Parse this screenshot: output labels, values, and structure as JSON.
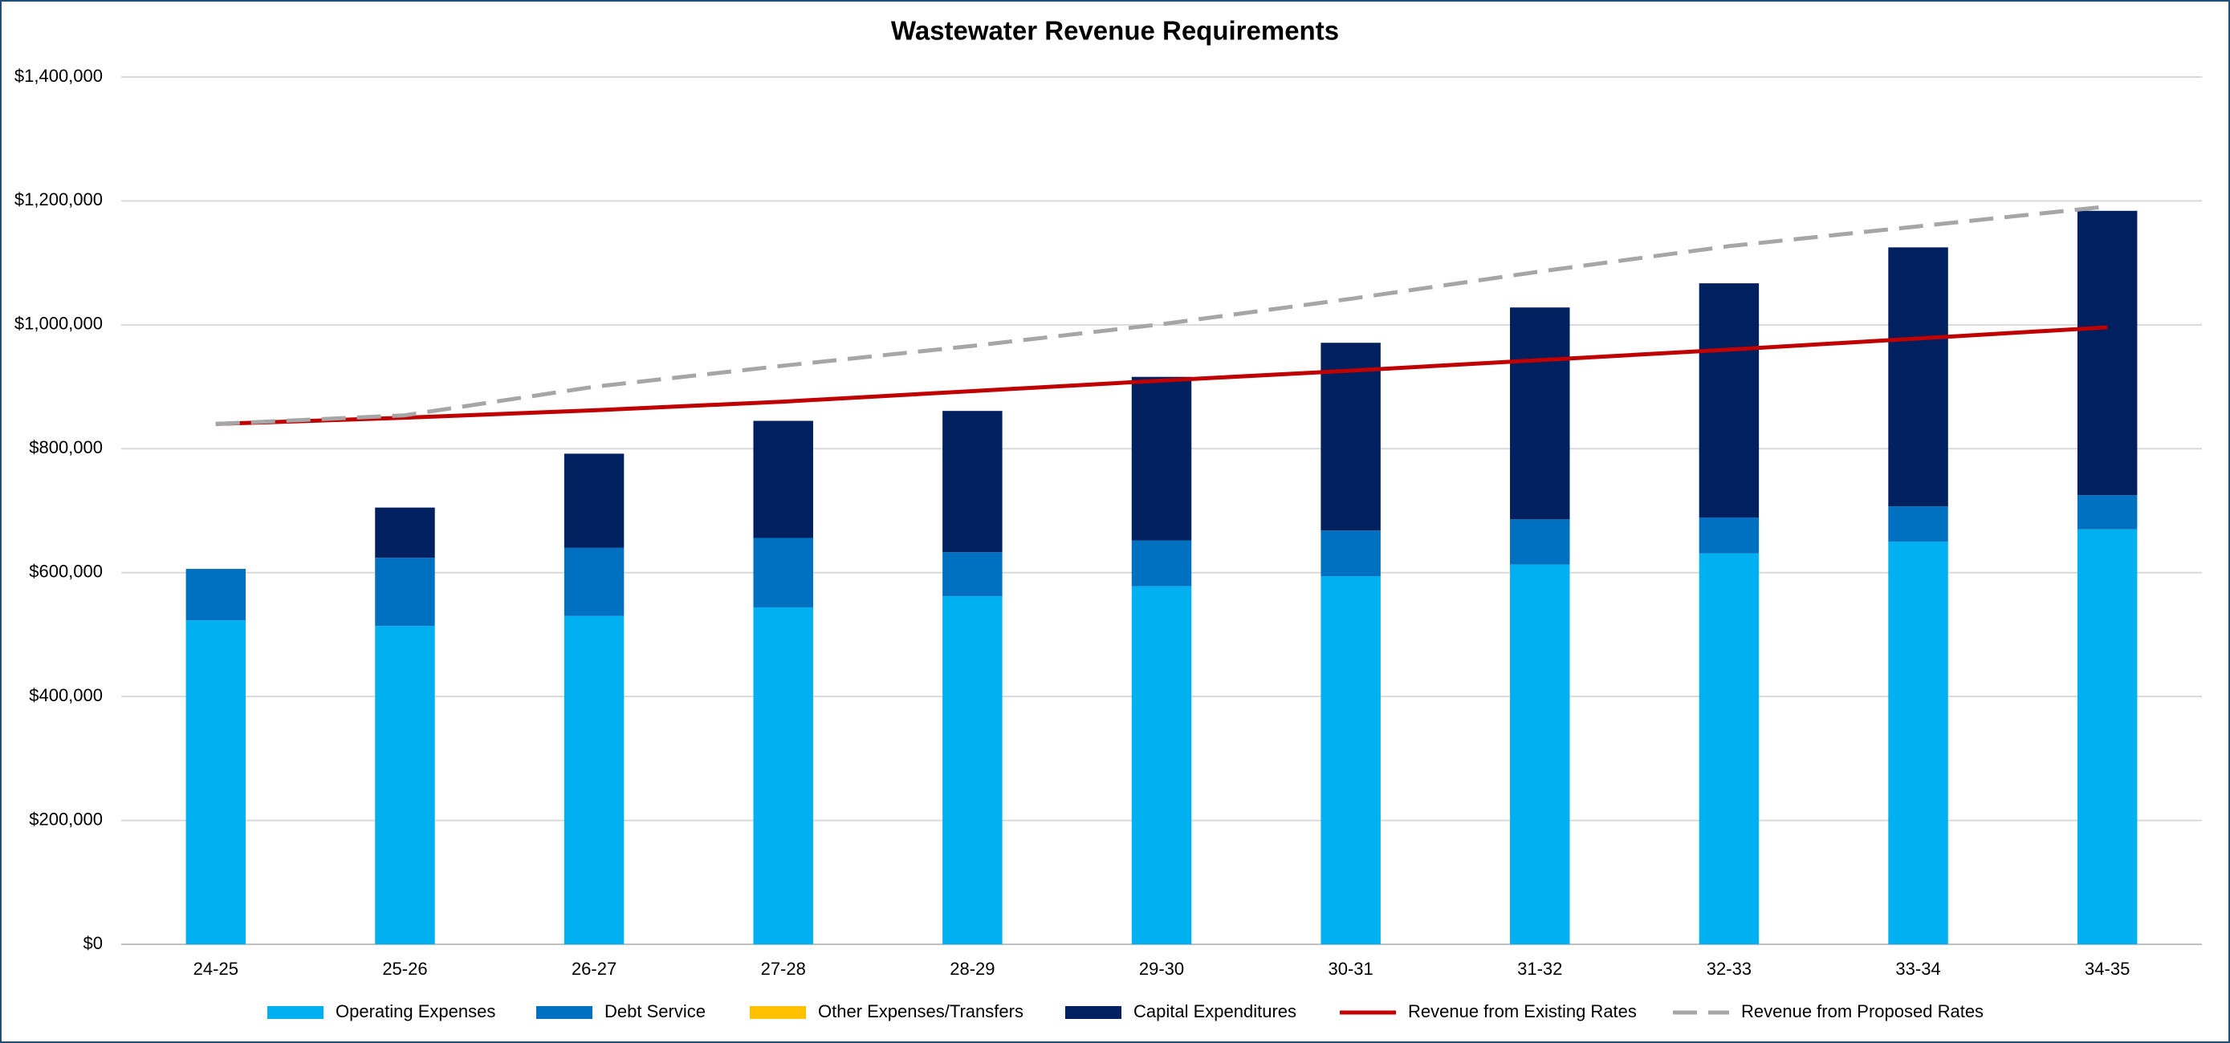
{
  "chart_data": {
    "type": "bar",
    "stacked": true,
    "title": "Wastewater Revenue Requirements",
    "categories": [
      "24-25",
      "25-26",
      "26-27",
      "27-28",
      "28-29",
      "29-30",
      "30-31",
      "31-32",
      "32-33",
      "33-34",
      "34-35"
    ],
    "series": [
      {
        "name": "Operating Expenses",
        "type": "bar",
        "color": "#00b0f0",
        "values": [
          523000,
          514000,
          530000,
          544000,
          562000,
          578000,
          594000,
          613000,
          631000,
          650000,
          670000
        ]
      },
      {
        "name": "Debt Service",
        "type": "bar",
        "color": "#0070c0",
        "values": [
          83000,
          110000,
          110000,
          112000,
          71000,
          74000,
          74000,
          73000,
          58000,
          57000,
          55000
        ]
      },
      {
        "name": "Other Expenses/Transfers",
        "type": "bar",
        "color": "#ffc000",
        "values": [
          0,
          0,
          0,
          0,
          0,
          0,
          0,
          0,
          0,
          0,
          0
        ]
      },
      {
        "name": "Capital Expenditures",
        "type": "bar",
        "color": "#002060",
        "values": [
          0,
          81000,
          152000,
          189000,
          228000,
          264000,
          303000,
          342000,
          378000,
          418000,
          459000
        ]
      },
      {
        "name": "Revenue from Existing Rates",
        "type": "line",
        "color": "#c00000",
        "dashed": false,
        "values": [
          840000,
          850000,
          862000,
          876000,
          893000,
          910000,
          926000,
          943000,
          960000,
          978000,
          996000
        ]
      },
      {
        "name": "Revenue from Proposed Rates",
        "type": "line",
        "color": "#a6a6a6",
        "dashed": true,
        "values": [
          840000,
          854000,
          900000,
          934000,
          966000,
          1001000,
          1042000,
          1086000,
          1127000,
          1159000,
          1191000
        ]
      }
    ],
    "ylim": [
      0,
      1400000
    ],
    "yticks": [
      {
        "value": 0,
        "label": "$0"
      },
      {
        "value": 200000,
        "label": "$200,000"
      },
      {
        "value": 400000,
        "label": "$400,000"
      },
      {
        "value": 600000,
        "label": "$600,000"
      },
      {
        "value": 800000,
        "label": "$800,000"
      },
      {
        "value": 1000000,
        "label": "$1,000,000"
      },
      {
        "value": 1200000,
        "label": "$1,200,000"
      },
      {
        "value": 1400000,
        "label": "$1,400,000"
      }
    ],
    "grid": true,
    "legend": "bottom"
  }
}
